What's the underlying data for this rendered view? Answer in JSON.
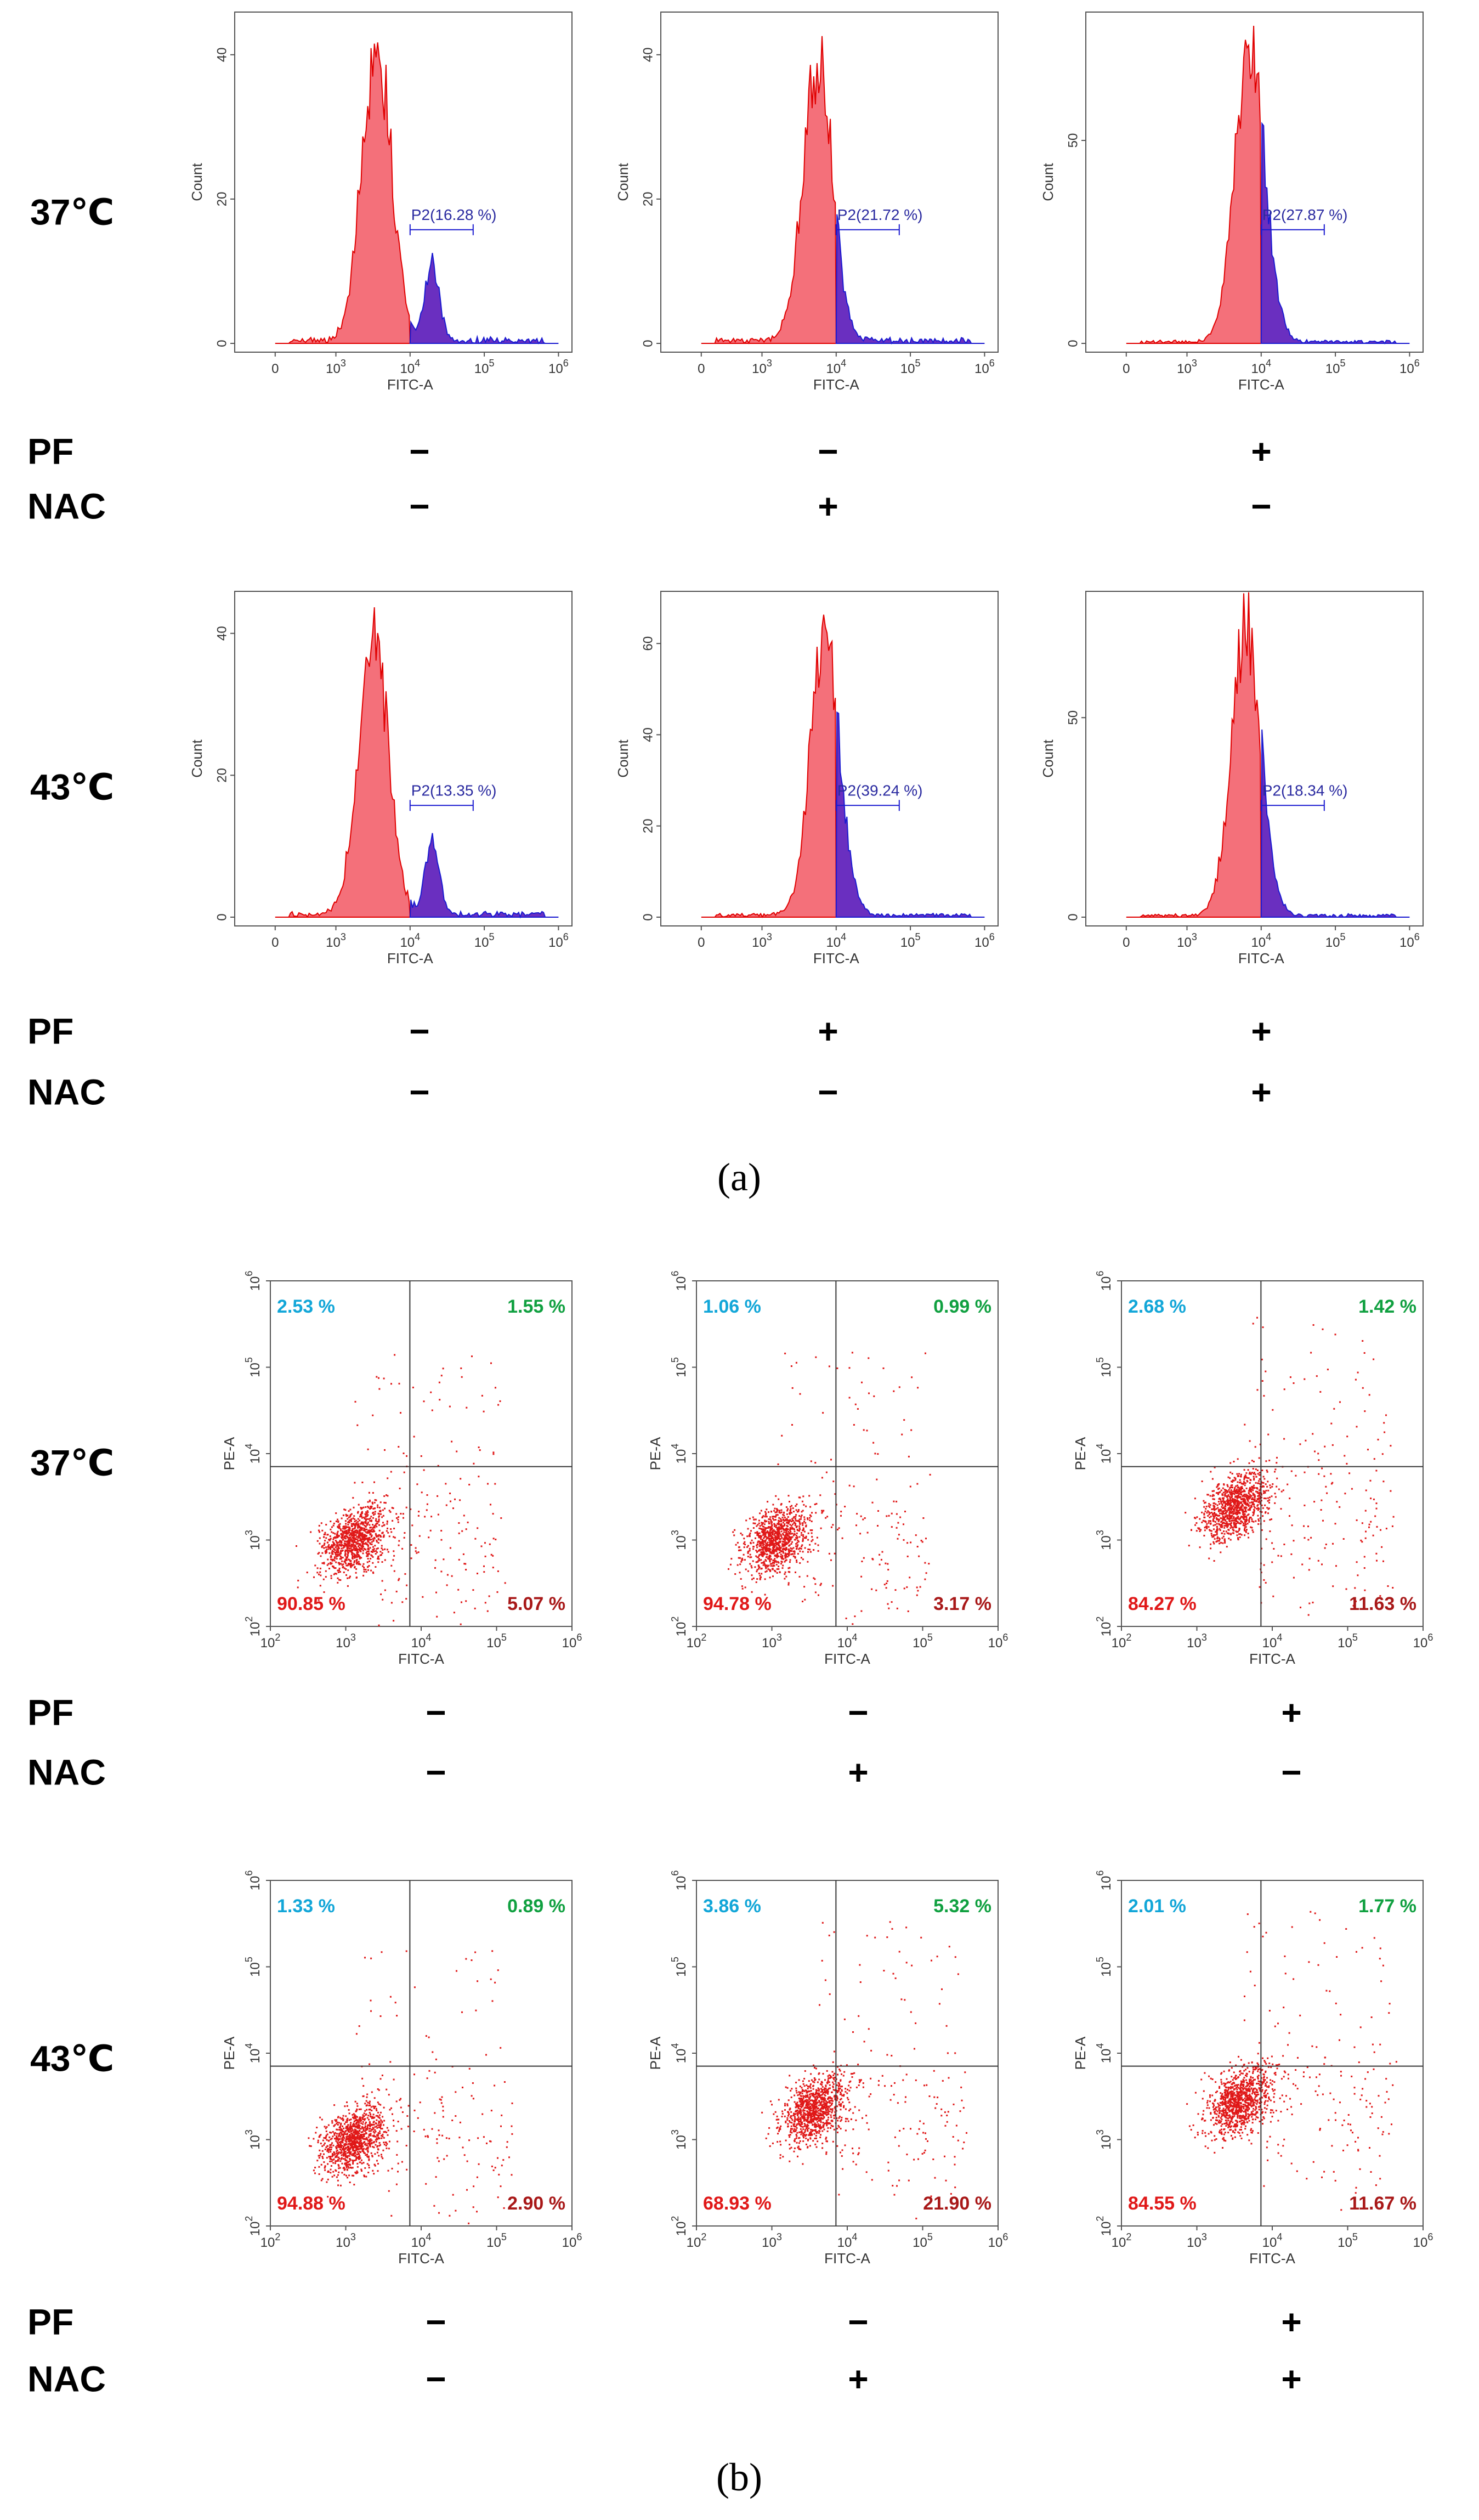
{
  "colors": {
    "hist_fill": "#f4707a",
    "hist_line": "#e00000",
    "gate_fill": "#6a2fc0",
    "gate_line": "#1a1ad0",
    "gate_text": "#2a2aa0",
    "dots": "#e01818",
    "ul_text": "#12a6d8",
    "ur_text": "#10a040",
    "ll_text": "#e01818",
    "lr_text": "#a81818"
  },
  "panel_a": {
    "label": "(a)",
    "rows": [
      {
        "temp": "37℃",
        "pf": [
          "−",
          "−",
          "+"
        ],
        "nac": [
          "−",
          "+",
          "−"
        ]
      },
      {
        "temp": "43℃",
        "pf": [
          "−",
          "+",
          "+"
        ],
        "nac": [
          "−",
          "−",
          "+"
        ]
      }
    ]
  },
  "panel_b": {
    "label": "(b)",
    "rows": [
      {
        "temp": "37℃",
        "pf": [
          "−",
          "−",
          "+"
        ],
        "nac": [
          "−",
          "+",
          "−"
        ]
      },
      {
        "temp": "43℃",
        "pf": [
          "−",
          "−",
          "+"
        ],
        "nac": [
          "−",
          "+",
          "+"
        ]
      }
    ]
  },
  "sign_labels": {
    "pf": "PF",
    "nac": "NAC"
  },
  "chart_data": [
    {
      "type": "histogram",
      "panel": "a",
      "xlabel": "FITC-A",
      "ylabel": "Count",
      "xscale": "biexponential",
      "xticks": [
        "0",
        "10^3",
        "10^4",
        "10^5",
        "10^6"
      ],
      "gate_name": "P2",
      "gate_start_log10": 4.0,
      "gate_end_log10": 4.85,
      "plots": [
        {
          "row": "37℃",
          "pf": "−",
          "nac": "−",
          "ymax": 45,
          "yticks": [
            0,
            20,
            40
          ],
          "gate_label": "P2(16.28 %)",
          "peak_log10": 3.55,
          "peak_count": 41
        },
        {
          "row": "37℃",
          "pf": "−",
          "nac": "+",
          "ymax": 45,
          "yticks": [
            0,
            20,
            40
          ],
          "gate_label": "P2(21.72 %)",
          "peak_log10": 3.75,
          "peak_count": 39
        },
        {
          "row": "37℃",
          "pf": "+",
          "nac": "−",
          "ymax": 80,
          "yticks": [
            0,
            50
          ],
          "gate_label": "P2(27.87 %)",
          "peak_log10": 3.85,
          "peak_count": 75
        },
        {
          "row": "43℃",
          "pf": "−",
          "nac": "−",
          "ymax": 45,
          "yticks": [
            0,
            20,
            40
          ],
          "gate_label": "P2(13.35 %)",
          "peak_log10": 3.5,
          "peak_count": 40
        },
        {
          "row": "43℃",
          "pf": "+",
          "nac": "−",
          "ymax": 70,
          "yticks": [
            0,
            20,
            40,
            60
          ],
          "gate_label": "P2(39.24 %)",
          "peak_log10": 3.85,
          "peak_count": 60
        },
        {
          "row": "43℃",
          "pf": "+",
          "nac": "+",
          "ymax": 80,
          "yticks": [
            0,
            50
          ],
          "gate_label": "P2(18.34 %)",
          "peak_log10": 3.8,
          "peak_count": 72
        }
      ]
    },
    {
      "type": "scatter",
      "panel": "b",
      "xlabel": "FITC-A",
      "ylabel": "PE-A",
      "xscale": "log",
      "xlim_log10": [
        2,
        6
      ],
      "ylim_log10": [
        2,
        6
      ],
      "xticks": [
        "10^2",
        "10^3",
        "10^4",
        "10^5",
        "10^6"
      ],
      "yticks": [
        "10^2",
        "10^3",
        "10^4",
        "10^5",
        "10^6"
      ],
      "quadrant_x_log10": 3.85,
      "quadrant_y_log10": 3.85,
      "plots": [
        {
          "row": "37℃",
          "pf": "−",
          "nac": "−",
          "UL": "2.53 %",
          "UR": "1.55 %",
          "LL": "90.85 %",
          "LR": "5.07 %",
          "center_log10": [
            3.1,
            3.0
          ]
        },
        {
          "row": "37℃",
          "pf": "−",
          "nac": "+",
          "UL": "1.06 %",
          "UR": "0.99 %",
          "LL": "94.78 %",
          "LR": "3.17 %",
          "center_log10": [
            3.05,
            3.0
          ]
        },
        {
          "row": "37℃",
          "pf": "+",
          "nac": "−",
          "UL": "2.68 %",
          "UR": "1.42 %",
          "LL": "84.27 %",
          "LR": "11.63 %",
          "center_log10": [
            3.5,
            3.4
          ]
        },
        {
          "row": "43℃",
          "pf": "−",
          "nac": "−",
          "UL": "1.33 %",
          "UR": "0.89 %",
          "LL": "94.88 %",
          "LR": "2.90 %",
          "center_log10": [
            3.1,
            3.0
          ]
        },
        {
          "row": "43℃",
          "pf": "−",
          "nac": "+",
          "UL": "3.86 %",
          "UR": "5.32 %",
          "LL": "68.93 %",
          "LR": "21.90 %",
          "center_log10": [
            3.55,
            3.35
          ]
        },
        {
          "row": "43℃",
          "pf": "+",
          "nac": "+",
          "UL": "2.01 %",
          "UR": "1.77 %",
          "LL": "84.55 %",
          "LR": "11.67 %",
          "center_log10": [
            3.55,
            3.45
          ]
        }
      ]
    }
  ]
}
